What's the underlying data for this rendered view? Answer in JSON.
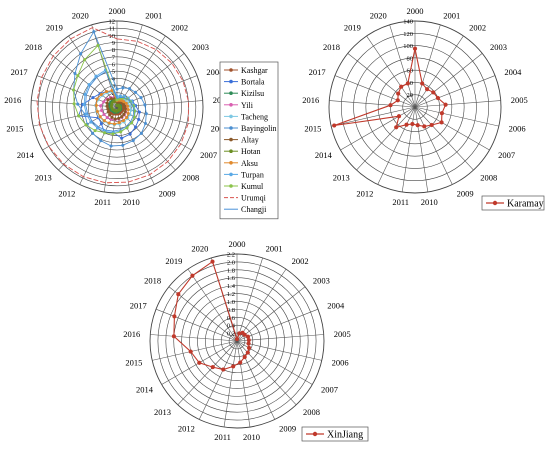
{
  "chart_data": [
    {
      "type": "radar",
      "years": [
        "2000",
        "2001",
        "2002",
        "2003",
        "2004",
        "2005",
        "2006",
        "2007",
        "2008",
        "2009",
        "2010",
        "2011",
        "2012",
        "2013",
        "2014",
        "2015",
        "2016",
        "2017",
        "2018",
        "2019",
        "2020"
      ],
      "rlim": [
        0,
        12
      ],
      "ticks": [
        "1",
        "2",
        "3",
        "4",
        "5",
        "6",
        "7",
        "8",
        "9",
        "10",
        "11",
        "12"
      ],
      "legend_position": "right",
      "series": [
        {
          "name": "Kashgar",
          "color": "#a0522d",
          "values": [
            0.5,
            0.6,
            0.6,
            0.7,
            0.7,
            0.8,
            0.8,
            0.9,
            0.9,
            1.0,
            1.0,
            1.0,
            1.1,
            1.2,
            1.2,
            1.3,
            1.3,
            1.2,
            1.0,
            0.9,
            0.8
          ]
        },
        {
          "name": "Bortala",
          "color": "#3a6fd8",
          "values": [
            0.8,
            1.2,
            1.5,
            1.8,
            2.3,
            2.6,
            3.2,
            3.5,
            3.8,
            4.2,
            4.4,
            3.6,
            4.0,
            3.2,
            3.0,
            5.5,
            4.8,
            3.6,
            3.0,
            2.6,
            2.2
          ]
        },
        {
          "name": "Kizilsu",
          "color": "#2e8b57",
          "values": [
            0.3,
            0.3,
            0.4,
            0.4,
            0.5,
            0.5,
            0.5,
            0.6,
            0.6,
            0.6,
            0.7,
            0.7,
            0.8,
            0.8,
            0.9,
            1.0,
            1.0,
            1.1,
            1.1,
            1.2,
            1.2
          ]
        },
        {
          "name": "Yili",
          "color": "#d95fb0",
          "values": [
            0.7,
            0.8,
            0.9,
            1.0,
            1.1,
            1.2,
            1.3,
            1.4,
            1.5,
            1.6,
            1.7,
            1.8,
            1.9,
            2.0,
            2.1,
            2.2,
            2.3,
            2.0,
            1.8,
            1.6,
            1.4
          ]
        },
        {
          "name": "Tacheng",
          "color": "#7ec8e3",
          "values": [
            1.0,
            1.1,
            1.2,
            1.4,
            1.6,
            1.8,
            2.0,
            2.1,
            2.2,
            2.3,
            2.4,
            2.5,
            2.6,
            2.7,
            2.8,
            2.9,
            3.0,
            2.8,
            2.6,
            2.4,
            2.2
          ]
        },
        {
          "name": "Bayingolin",
          "color": "#4b8fd1",
          "values": [
            2.5,
            2.8,
            3.1,
            3.3,
            3.6,
            3.9,
            4.2,
            4.6,
            5.0,
            5.2,
            5.4,
            5.5,
            5.2,
            5.0,
            4.8,
            4.6,
            5.5,
            6.5,
            7.5,
            9.0,
            11.0
          ]
        },
        {
          "name": "Altay",
          "color": "#8b5a2b",
          "values": [
            0.6,
            0.7,
            0.8,
            0.9,
            1.0,
            1.1,
            1.2,
            1.3,
            1.4,
            1.5,
            1.6,
            1.7,
            1.6,
            1.5,
            1.4,
            1.3,
            1.4,
            1.5,
            1.6,
            1.4,
            1.2
          ]
        },
        {
          "name": "Hotan",
          "color": "#6b8e23",
          "values": [
            0.2,
            0.2,
            0.3,
            0.3,
            0.3,
            0.4,
            0.4,
            0.4,
            0.5,
            0.5,
            0.5,
            0.6,
            0.6,
            0.6,
            0.7,
            0.7,
            0.8,
            0.8,
            0.9,
            0.9,
            1.0
          ]
        },
        {
          "name": "Aksu",
          "color": "#e08a2e",
          "values": [
            0.9,
            1.0,
            1.1,
            1.2,
            1.4,
            1.5,
            1.6,
            1.8,
            2.0,
            2.1,
            2.2,
            2.4,
            2.5,
            2.6,
            2.7,
            2.8,
            2.9,
            3.0,
            2.8,
            2.6,
            2.4
          ]
        },
        {
          "name": "Turpan",
          "color": "#5aa9e6",
          "values": [
            1.5,
            1.6,
            1.8,
            2.0,
            2.2,
            2.4,
            2.6,
            2.8,
            3.0,
            3.2,
            3.4,
            3.6,
            3.8,
            4.0,
            4.2,
            4.4,
            4.6,
            4.8,
            5.0,
            5.2,
            5.4
          ]
        },
        {
          "name": "Kumul",
          "color": "#8bc34a",
          "values": [
            1.0,
            1.2,
            1.5,
            1.8,
            2.0,
            2.3,
            2.5,
            2.8,
            3.0,
            3.2,
            3.5,
            3.8,
            4.0,
            4.5,
            5.0,
            5.5,
            6.0,
            6.5,
            7.0,
            8.0,
            9.0
          ]
        },
        {
          "name": "Urumqi",
          "color": "#d9534f",
          "values": [
            9.5,
            9.6,
            9.7,
            9.8,
            9.9,
            10.0,
            10.2,
            10.3,
            10.4,
            10.5,
            10.6,
            10.7,
            10.8,
            10.9,
            11.0,
            11.1,
            11.2,
            11.3,
            11.4,
            11.5,
            11.6
          ]
        },
        {
          "name": "Changji",
          "color": "#4a90d9",
          "values": [
            1.2,
            1.4,
            1.6,
            1.8,
            2.0,
            2.2,
            2.4,
            2.6,
            2.8,
            3.0,
            3.2,
            3.4,
            3.6,
            3.8,
            4.0,
            4.2,
            4.4,
            4.6,
            4.8,
            5.0,
            5.2
          ]
        }
      ]
    },
    {
      "type": "radar",
      "years": [
        "2000",
        "2001",
        "2002",
        "2003",
        "2004",
        "2005",
        "2006",
        "2007",
        "2008",
        "2009",
        "2010",
        "2011",
        "2012",
        "2013",
        "2014",
        "2015",
        "2016",
        "2017",
        "2018",
        "2019",
        "2020"
      ],
      "rlim": [
        0,
        140
      ],
      "ticks": [
        "20",
        "40",
        "60",
        "80",
        "100",
        "120",
        "140"
      ],
      "legend_position": "bottom-right",
      "series": [
        {
          "name": "Karamay",
          "color": "#c0392b",
          "values": [
            95,
            40,
            35,
            38,
            40,
            50,
            45,
            50,
            40,
            35,
            30,
            28,
            32,
            45,
            30,
            135,
            40,
            30,
            35,
            40,
            40
          ]
        }
      ]
    },
    {
      "type": "radar",
      "years": [
        "2000",
        "2001",
        "2002",
        "2003",
        "2004",
        "2005",
        "2006",
        "2007",
        "2008",
        "2009",
        "2010",
        "2011",
        "2012",
        "2013",
        "2014",
        "2015",
        "2016",
        "2017",
        "2018",
        "2019",
        "2020"
      ],
      "rlim": [
        0,
        2.2
      ],
      "ticks": [
        "0.2",
        "0.4",
        "0.6",
        "0.8",
        "1.0",
        "1.2",
        "1.4",
        "1.6",
        "1.8",
        "2.0",
        "2.2"
      ],
      "legend_position": "bottom-right",
      "series": [
        {
          "name": "XinJiang",
          "color": "#c0392b",
          "values": [
            0.05,
            0.2,
            0.25,
            0.25,
            0.3,
            0.3,
            0.3,
            0.35,
            0.4,
            0.45,
            0.55,
            0.65,
            0.8,
            0.9,
            1.1,
            1.2,
            1.6,
            1.7,
            1.9,
            2.0,
            2.1
          ]
        }
      ]
    }
  ]
}
